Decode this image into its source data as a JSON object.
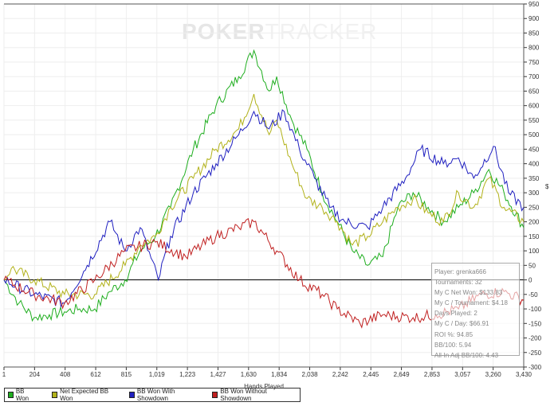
{
  "watermark": {
    "a": "POKER",
    "b": "TRACKER"
  },
  "chart_data": {
    "type": "line",
    "title": "",
    "xlabel": "Hands Played",
    "ylabel": "$",
    "xlim": [
      1,
      3430
    ],
    "ylim": [
      -300,
      950
    ],
    "x_ticks": [
      "1",
      "204",
      "408",
      "612",
      "815",
      "1,019",
      "1,223",
      "1,427",
      "1,630",
      "1,834",
      "2,038",
      "2,242",
      "2,445",
      "2,649",
      "2,853",
      "3,057",
      "3,260",
      "3,430"
    ],
    "y_ticks": [
      950,
      900,
      850,
      800,
      750,
      700,
      650,
      600,
      550,
      500,
      450,
      400,
      350,
      300,
      250,
      200,
      150,
      100,
      50,
      0,
      -50,
      -100,
      -150,
      -200,
      -250,
      -300
    ],
    "grid": true,
    "legend_position": "bottom-left",
    "series": [
      {
        "name": "BB Won",
        "color": "#1fae1f",
        "x": [
          1,
          100,
          200,
          300,
          400,
          500,
          600,
          700,
          800,
          900,
          1000,
          1100,
          1250,
          1400,
          1550,
          1650,
          1750,
          1800,
          1900,
          2000,
          2100,
          2200,
          2300,
          2400,
          2500,
          2600,
          2700,
          2800,
          2900,
          3000,
          3100,
          3200,
          3300,
          3430
        ],
        "y": [
          0,
          -80,
          -130,
          -120,
          -110,
          -100,
          -100,
          -40,
          0,
          100,
          150,
          250,
          450,
          600,
          700,
          790,
          650,
          700,
          550,
          450,
          300,
          200,
          100,
          50,
          80,
          250,
          300,
          250,
          200,
          250,
          300,
          380,
          300,
          180
        ]
      },
      {
        "name": "Net Expected BB Won",
        "color": "#b2b21a",
        "x": [
          1,
          50,
          200,
          400,
          600,
          800,
          900,
          1000,
          1100,
          1250,
          1400,
          1550,
          1650,
          1750,
          1800,
          1900,
          2000,
          2100,
          2200,
          2300,
          2400,
          2500,
          2600,
          2700,
          2800,
          2900,
          3000,
          3100,
          3200,
          3300,
          3430
        ],
        "y": [
          0,
          40,
          0,
          -50,
          -50,
          50,
          120,
          150,
          250,
          350,
          450,
          520,
          640,
          500,
          550,
          400,
          280,
          250,
          200,
          120,
          150,
          200,
          250,
          280,
          230,
          200,
          300,
          250,
          350,
          250,
          200
        ]
      },
      {
        "name": "BB Won With Showdown",
        "color": "#2020c0",
        "x": [
          1,
          200,
          400,
          550,
          700,
          800,
          900,
          1019,
          1100,
          1250,
          1400,
          1550,
          1650,
          1750,
          1850,
          1950,
          2050,
          2150,
          2250,
          2400,
          2500,
          2650,
          2750,
          2900,
          3000,
          3100,
          3230,
          3330,
          3430
        ],
        "y": [
          0,
          -50,
          -80,
          50,
          200,
          100,
          180,
          0,
          150,
          300,
          400,
          500,
          580,
          520,
          580,
          450,
          350,
          250,
          200,
          180,
          250,
          350,
          450,
          400,
          420,
          350,
          460,
          300,
          250
        ]
      },
      {
        "name": "BB Won Without Showdown",
        "color": "#c02020",
        "x": [
          1,
          200,
          400,
          600,
          800,
          1000,
          1200,
          1400,
          1550,
          1650,
          1800,
          1950,
          2100,
          2200,
          2350,
          2500,
          2700,
          2850,
          3000,
          3150,
          3300,
          3430
        ],
        "y": [
          0,
          -50,
          -80,
          0,
          100,
          130,
          80,
          150,
          180,
          200,
          100,
          0,
          -50,
          -100,
          -150,
          -120,
          -130,
          -120,
          -100,
          -50,
          -40,
          -70
        ]
      }
    ]
  },
  "stats": [
    "Player: grenka666",
    "Tournaments: 32",
    "My C Net Won: $133.83",
    "My C / Tournament: $4.18",
    "Days Played: 2",
    "My C / Day: $66.91",
    "ROI %: 94.85",
    "BB/100: 5.94",
    "All-In Adj BB/100: 4.43"
  ]
}
